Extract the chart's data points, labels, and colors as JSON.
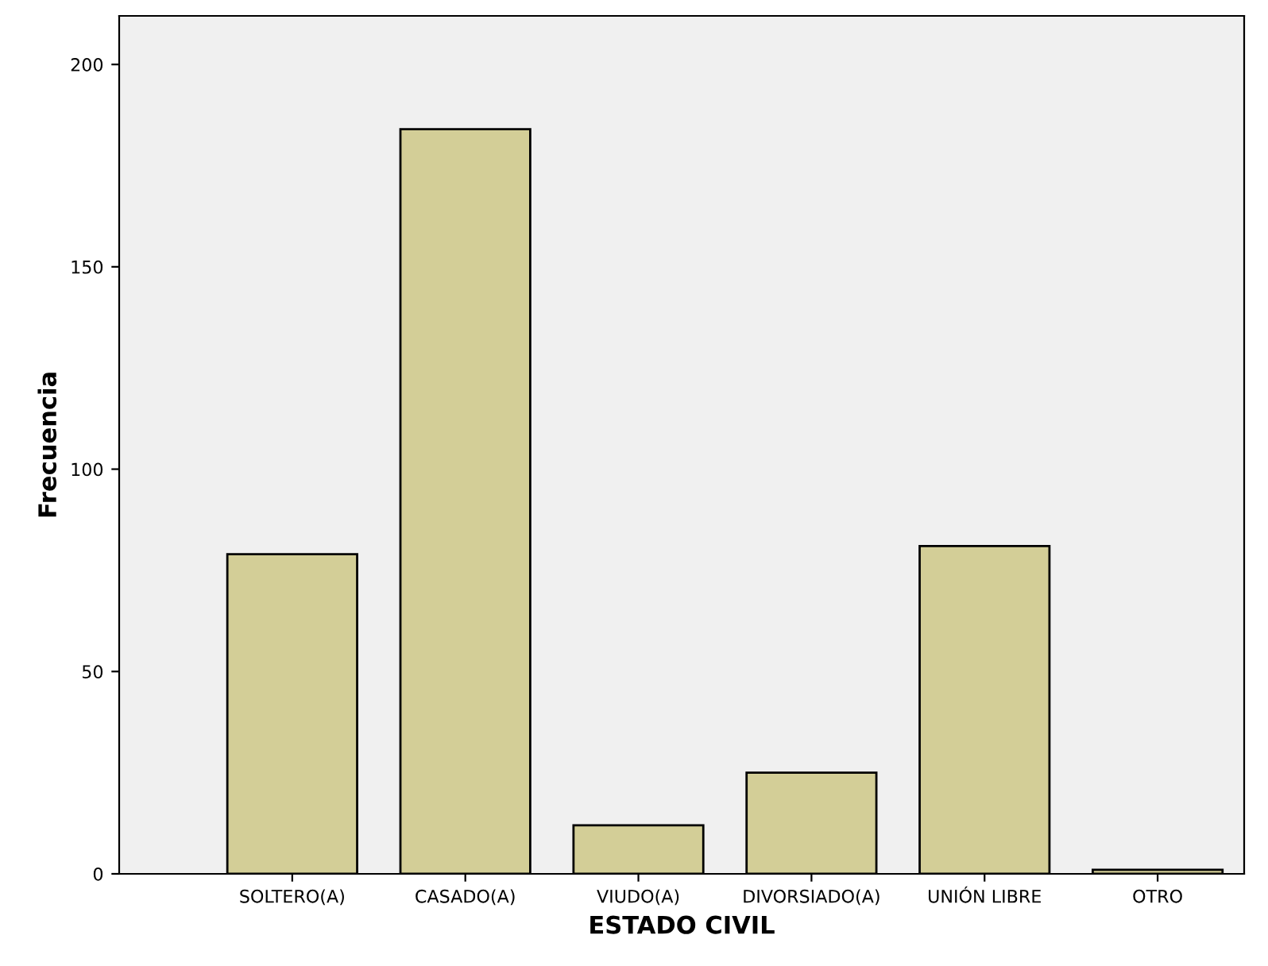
{
  "chart_data": {
    "type": "bar",
    "xlabel": "ESTADO CIVIL",
    "ylabel": "Frecuencia",
    "categories": [
      "SOLTERO(A)",
      "CASADO(A)",
      "VIUDO(A)",
      "DIVORSIADO(A)",
      "UNIÓN LIBRE",
      "OTRO"
    ],
    "values": [
      79,
      184,
      12,
      25,
      81,
      1
    ],
    "color": "#d3ce97",
    "ylim": [
      0,
      212
    ],
    "yticks": [
      0,
      50,
      100,
      150,
      200
    ],
    "grid": false
  }
}
